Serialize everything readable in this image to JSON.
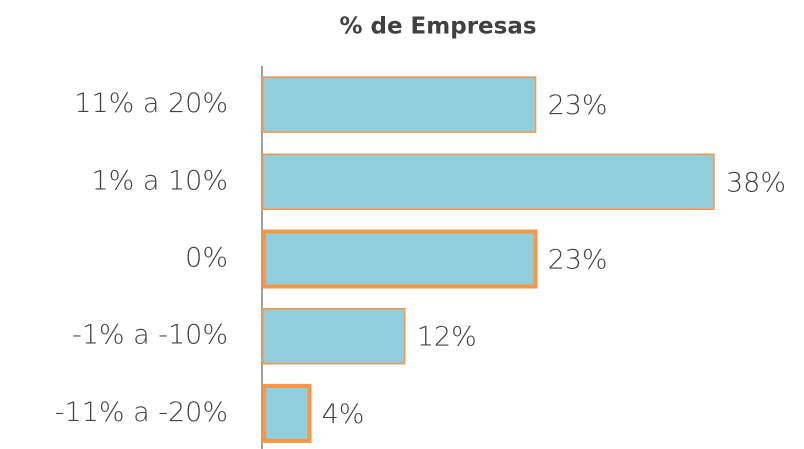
{
  "chart_data": {
    "type": "bar",
    "orientation": "horizontal",
    "title": "% de Empresas",
    "categories": [
      "11% a 20%",
      "1% a 10%",
      "0%",
      "-1% a -10%",
      "-11% a -20%"
    ],
    "values": [
      23,
      38,
      23,
      12,
      4
    ],
    "value_labels": [
      "23%",
      "38%",
      "23%",
      "12%",
      "4%"
    ],
    "color": "#92cddc",
    "edge_color": "#f79646",
    "emphasized": [
      false,
      false,
      true,
      false,
      true
    ]
  }
}
